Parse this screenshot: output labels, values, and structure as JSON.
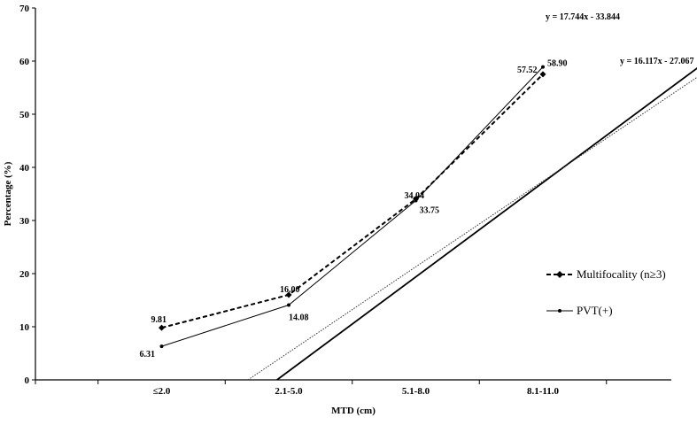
{
  "chart_data": {
    "type": "line",
    "categories": [
      "≤2.0",
      "2.1-5.0",
      "5.1-8.0",
      "8.1-11.0"
    ],
    "xlabel": "MTD (cm)",
    "ylabel": "Percentage (%)",
    "ylim": [
      0,
      70
    ],
    "yticks": [
      0,
      10,
      20,
      30,
      40,
      50,
      60,
      70
    ],
    "grid": false,
    "legend_position": "right",
    "series": [
      {
        "name": "Multifocality (n≥3)",
        "values": [
          9.81,
          16.0,
          34.04,
          57.52
        ],
        "labels": [
          "9.81",
          "16.00",
          "34.04",
          "57.52"
        ],
        "style": "dashed",
        "marker": "diamond"
      },
      {
        "name": "PVT(+)",
        "values": [
          6.31,
          14.08,
          33.75,
          58.9
        ],
        "labels": [
          "6.31",
          "14.08",
          "33.75",
          "58.90"
        ],
        "style": "solid",
        "marker": "dot"
      }
    ],
    "trendlines": [
      {
        "equation": "y = 17.744x - 33.844",
        "slope": 17.744,
        "intercept": -33.844,
        "style": "solid"
      },
      {
        "equation": "y = 16.117x - 27.067",
        "slope": 16.117,
        "intercept": -27.067,
        "style": "dotted"
      }
    ]
  }
}
